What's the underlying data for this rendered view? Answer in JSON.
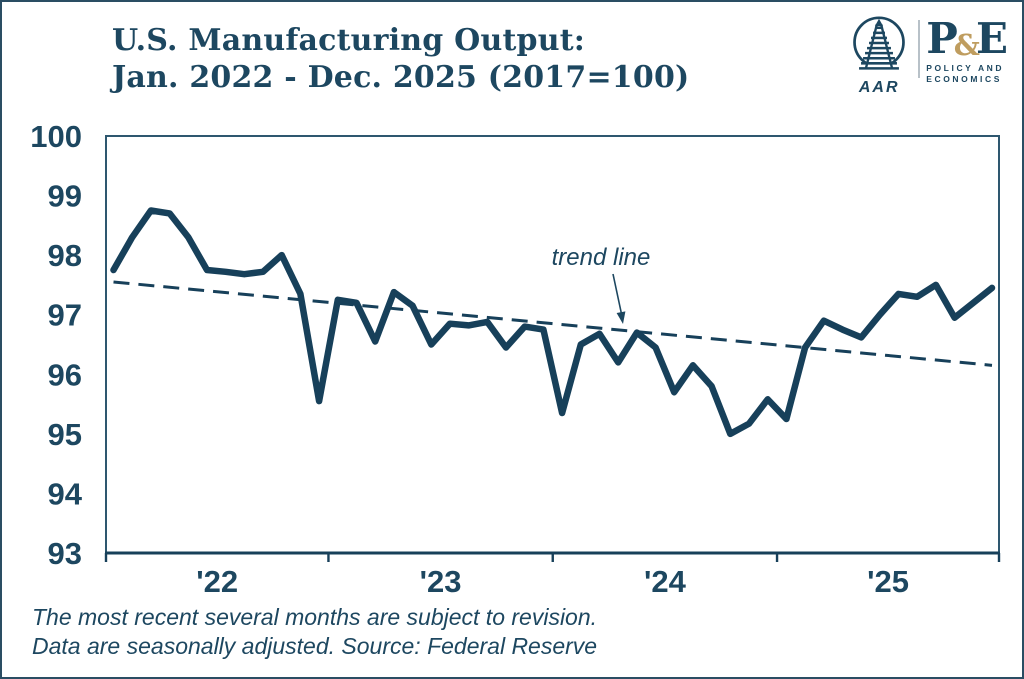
{
  "header": {
    "title_line1": "U.S. Manufacturing Output:",
    "title_line2": "Jan. 2022 - Dec. 2025 (2017=100)"
  },
  "logo": {
    "aar_icon": "railroad-track-in-circle",
    "aar_label": "AAR",
    "pe_p": "P",
    "pe_amp": "&",
    "pe_e": "E",
    "pe_sub1": "POLICY AND",
    "pe_sub2": "ECONOMICS"
  },
  "footnote": {
    "line1": "The most recent several months are subject to revision.",
    "line2": "Data are seasonally adjusted. Source: Federal Reserve"
  },
  "colors": {
    "navy_text": "#1d4760",
    "line": "#17405a",
    "frame": "#2e576f",
    "gold": "#bf9d5f",
    "divider": "#b8c1c8"
  },
  "chart_data": {
    "type": "line",
    "title": "U.S. Manufacturing Output: Jan. 2022 - Dec. 2025 (2017=100)",
    "index_note": "2017=100",
    "xlabel": "",
    "ylabel": "",
    "ylim": [
      93,
      100
    ],
    "y_ticks": [
      100,
      99,
      98,
      97,
      96,
      95,
      94,
      93
    ],
    "x_tick_labels": [
      "'22",
      "'23",
      "'24",
      "'25"
    ],
    "grid": false,
    "legend": "none",
    "months": [
      "Jan 2022",
      "Feb 2022",
      "Mar 2022",
      "Apr 2022",
      "May 2022",
      "Jun 2022",
      "Jul 2022",
      "Aug 2022",
      "Sep 2022",
      "Oct 2022",
      "Nov 2022",
      "Dec 2022",
      "Jan 2023",
      "Feb 2023",
      "Mar 2023",
      "Apr 2023",
      "May 2023",
      "Jun 2023",
      "Jul 2023",
      "Aug 2023",
      "Sep 2023",
      "Oct 2023",
      "Nov 2023",
      "Dec 2023",
      "Jan 2024",
      "Feb 2024",
      "Mar 2024",
      "Apr 2024",
      "May 2024",
      "Jun 2024",
      "Jul 2024",
      "Aug 2024",
      "Sep 2024",
      "Oct 2024",
      "Nov 2024",
      "Dec 2024",
      "Jan 2025",
      "Feb 2025",
      "Mar 2025",
      "Apr 2025",
      "May 2025",
      "Jun 2025",
      "Jul 2025",
      "Aug 2025",
      "Sep 2025",
      "Oct 2025",
      "Nov 2025",
      "Dec 2025"
    ],
    "values": [
      97.75,
      98.3,
      98.75,
      98.7,
      98.3,
      97.75,
      97.72,
      97.68,
      97.72,
      98.0,
      97.35,
      95.55,
      97.25,
      97.2,
      96.55,
      97.38,
      97.15,
      96.5,
      96.85,
      96.82,
      96.88,
      96.45,
      96.8,
      96.75,
      95.35,
      96.5,
      96.68,
      96.2,
      96.7,
      96.45,
      95.7,
      96.15,
      95.8,
      95.0,
      95.17,
      95.58,
      95.25,
      96.45,
      96.9,
      96.75,
      96.62,
      97.0,
      97.35,
      97.3,
      97.5,
      96.95,
      97.2,
      97.45
    ],
    "trend": {
      "label": "trend line",
      "start_value": 97.55,
      "end_value": 96.15,
      "style": "dashed"
    },
    "annotation": {
      "text": "trend line"
    }
  }
}
